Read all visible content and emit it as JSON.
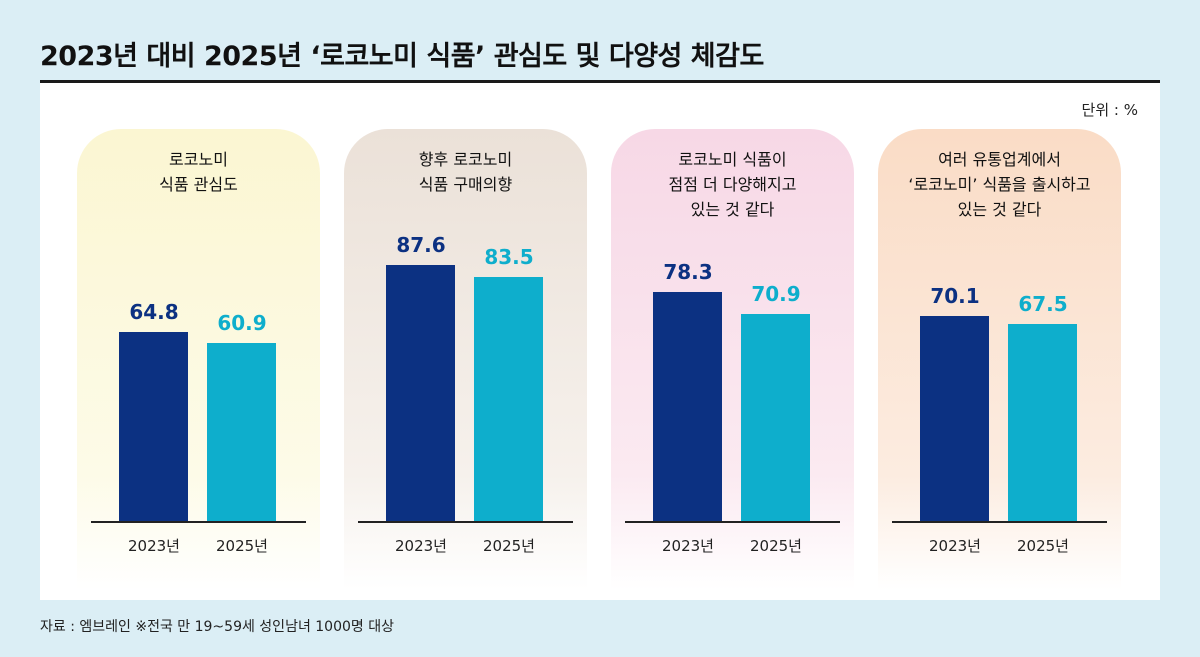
{
  "title": "2023년 대비 2025년 ‘로코노미 식품’ 관심도 및 다양성 체감도",
  "unit": "단위 : %",
  "source": "자료 : 엠브레인  ※전국 만 19~59세 성인남녀 1000명 대상",
  "colors": {
    "bar_2023": "#0c3182",
    "bar_2025": "#0eaecc",
    "card_backgrounds": [
      "#fbf6d2",
      "#efe6de",
      "#f8dce8",
      "#fbe1cb"
    ]
  },
  "chart_data": [
    {
      "type": "bar",
      "title": "로코노미\n식품 관심도",
      "categories": [
        "2023년",
        "2025년"
      ],
      "values": [
        64.8,
        60.9
      ],
      "ylim": [
        0,
        100
      ]
    },
    {
      "type": "bar",
      "title": "향후 로코노미\n식품 구매의향",
      "categories": [
        "2023년",
        "2025년"
      ],
      "values": [
        87.6,
        83.5
      ],
      "ylim": [
        0,
        100
      ]
    },
    {
      "type": "bar",
      "title": "로코노미 식품이\n점점 더 다양해지고\n있는 것 같다",
      "categories": [
        "2023년",
        "2025년"
      ],
      "values": [
        78.3,
        70.9
      ],
      "ylim": [
        0,
        100
      ]
    },
    {
      "type": "bar",
      "title": "여러 유통업계에서\n‘로코노미’ 식품을 출시하고\n있는 것 같다",
      "categories": [
        "2023년",
        "2025년"
      ],
      "values": [
        70.1,
        67.5
      ],
      "ylim": [
        0,
        100
      ]
    }
  ]
}
